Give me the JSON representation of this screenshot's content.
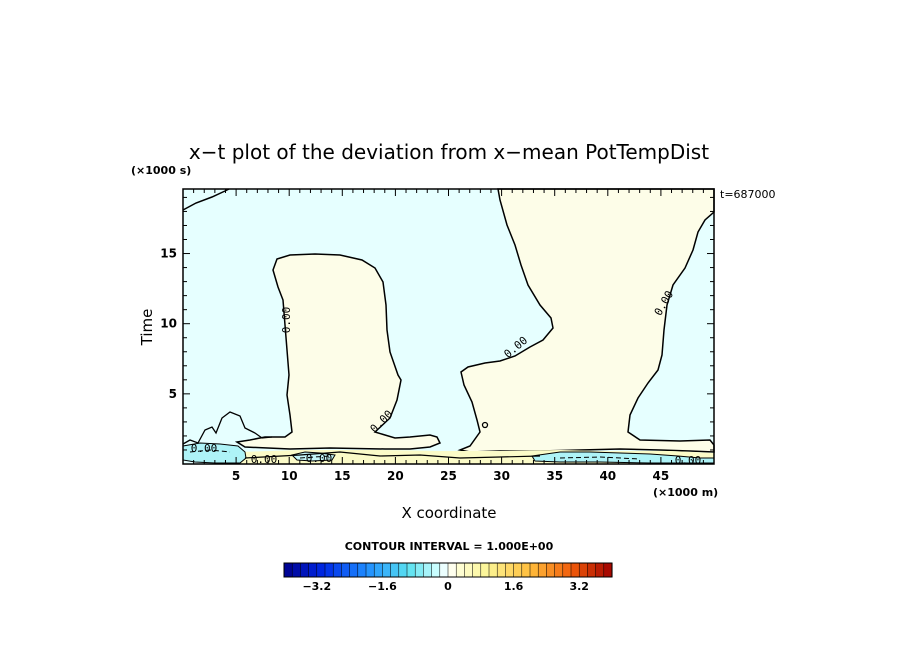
{
  "chart_data": {
    "type": "contour",
    "title": "x−t plot of the deviation from x−mean PotTempDist",
    "xlabel": "X coordinate",
    "ylabel": "Time",
    "x_unit": "(×1000 m)",
    "y_unit": "(×1000 s)",
    "xlim": [
      0,
      50
    ],
    "ylim": [
      0,
      19.6
    ],
    "x_ticks": [
      5,
      10,
      15,
      20,
      25,
      30,
      35,
      40,
      45
    ],
    "y_ticks": [
      5,
      10,
      15
    ],
    "time_label": "t=687000",
    "contour_interval_text": "CONTOUR INTERVAL = 1.000E+00",
    "contour_labels": [
      "0.00",
      "0.00",
      "0.00",
      "0.00",
      "0.00",
      "0.00",
      "0.00",
      "0.00"
    ],
    "colorbar": {
      "min": -4.0,
      "max": 4.0,
      "step": 0.2,
      "tick_values": [
        -3.2,
        -1.6,
        0,
        1.6,
        3.2
      ],
      "tick_labels": [
        "−3.2",
        "−1.6",
        "0",
        "1.6",
        "3.2"
      ]
    },
    "regions": [
      {
        "sign": "negative",
        "color": "#e6ffff",
        "desc": "background"
      },
      {
        "sign": "positive",
        "color": "#fdfde8",
        "x_range": [
          8.5,
          20.5
        ],
        "t_range": [
          1.6,
          15.2
        ]
      },
      {
        "sign": "positive",
        "color": "#fdfde8",
        "x_range": [
          25.5,
          49.5
        ],
        "t_range": [
          1.2,
          19.6
        ]
      }
    ]
  }
}
